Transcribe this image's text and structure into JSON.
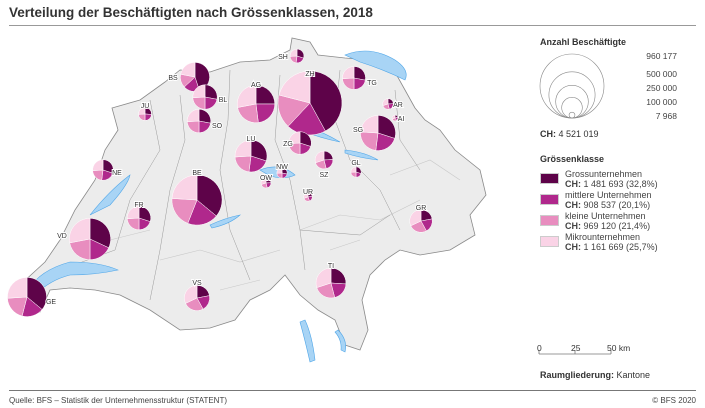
{
  "title": "Verteilung der Beschäftigten nach Grössenklassen, 2018",
  "legend": {
    "size_title": "Anzahl Beschäftigte",
    "size_values": [
      "960 177",
      "500 000",
      "250 000",
      "100 000",
      "7 968"
    ],
    "size_numbers": [
      960177,
      500000,
      250000,
      100000,
      7968
    ],
    "ch_total_label": "CH:",
    "ch_total_value": "4 521 019",
    "class_title": "Grössenklasse",
    "classes": [
      {
        "name": "Grossunternehmen",
        "ch_label": "CH:",
        "ch_value": "1 481 693 (32,8%)",
        "color": "#5e0349"
      },
      {
        "name": "mittlere Unternehmen",
        "ch_label": "CH:",
        "ch_value": "908 537 (20,1%)",
        "color": "#b0288c"
      },
      {
        "name": "kleine Unternehmen",
        "ch_label": "CH:",
        "ch_value": "969 120 (21,4%)",
        "color": "#e88dbf"
      },
      {
        "name": "Mikrounternehmen",
        "ch_label": "CH:",
        "ch_value": "1 161 669 (25,7%)",
        "color": "#fad3e6"
      }
    ],
    "scale": {
      "ticks": [
        "0",
        "25",
        "50 km"
      ]
    },
    "raum_label": "Raumgliederung:",
    "raum_value": "Kantone"
  },
  "colors": {
    "lake": "#a8d4f5",
    "land": "#ececec",
    "border": "#8a8a8a"
  },
  "chart_data": {
    "type": "pie-map",
    "series_order": [
      "Grossunternehmen",
      "mittlere Unternehmen",
      "kleine Unternehmen",
      "Mikrounternehmen"
    ],
    "cantons": [
      {
        "code": "ZH",
        "total": 960177,
        "shares": [
          42,
          20,
          17,
          21
        ]
      },
      {
        "code": "BE",
        "total": 590000,
        "shares": [
          36,
          20,
          20,
          24
        ]
      },
      {
        "code": "VD",
        "total": 400000,
        "shares": [
          32,
          18,
          22,
          28
        ]
      },
      {
        "code": "GE",
        "total": 360000,
        "shares": [
          36,
          18,
          20,
          26
        ]
      },
      {
        "code": "AG",
        "total": 330000,
        "shares": [
          25,
          23,
          24,
          28
        ]
      },
      {
        "code": "SG",
        "total": 290000,
        "shares": [
          30,
          22,
          24,
          24
        ]
      },
      {
        "code": "LU",
        "total": 240000,
        "shares": [
          30,
          22,
          22,
          26
        ]
      },
      {
        "code": "BS",
        "total": 200000,
        "shares": [
          45,
          18,
          15,
          22
        ]
      },
      {
        "code": "TI",
        "total": 210000,
        "shares": [
          26,
          20,
          24,
          30
        ]
      },
      {
        "code": "BL",
        "total": 140000,
        "shares": [
          28,
          22,
          24,
          26
        ]
      },
      {
        "code": "VS",
        "total": 150000,
        "shares": [
          22,
          20,
          26,
          32
        ]
      },
      {
        "code": "SO",
        "total": 130000,
        "shares": [
          28,
          22,
          24,
          26
        ]
      },
      {
        "code": "FR",
        "total": 130000,
        "shares": [
          30,
          20,
          24,
          26
        ]
      },
      {
        "code": "ZG",
        "total": 120000,
        "shares": [
          30,
          20,
          24,
          26
        ]
      },
      {
        "code": "GR",
        "total": 120000,
        "shares": [
          22,
          20,
          26,
          32
        ]
      },
      {
        "code": "TG",
        "total": 125000,
        "shares": [
          28,
          22,
          24,
          26
        ]
      },
      {
        "code": "NE",
        "total": 100000,
        "shares": [
          30,
          22,
          22,
          26
        ]
      },
      {
        "code": "SZ",
        "total": 75000,
        "shares": [
          24,
          22,
          24,
          30
        ]
      },
      {
        "code": "SH",
        "total": 45000,
        "shares": [
          30,
          22,
          22,
          26
        ]
      },
      {
        "code": "JU",
        "total": 40000,
        "shares": [
          26,
          24,
          24,
          26
        ]
      },
      {
        "code": "GL",
        "total": 25000,
        "shares": [
          30,
          20,
          24,
          26
        ]
      },
      {
        "code": "NW",
        "total": 25000,
        "shares": [
          28,
          22,
          24,
          26
        ]
      },
      {
        "code": "AR",
        "total": 27000,
        "shares": [
          24,
          22,
          24,
          30
        ]
      },
      {
        "code": "OW",
        "total": 23000,
        "shares": [
          24,
          22,
          24,
          30
        ]
      },
      {
        "code": "UR",
        "total": 17000,
        "shares": [
          22,
          22,
          26,
          30
        ]
      },
      {
        "code": "AI",
        "total": 7968,
        "shares": [
          20,
          20,
          28,
          32
        ]
      }
    ]
  },
  "footer": {
    "source": "Quelle: BFS – Statistik der Unternehmensstruktur (STATENT)",
    "copyright": "© BFS 2020"
  }
}
